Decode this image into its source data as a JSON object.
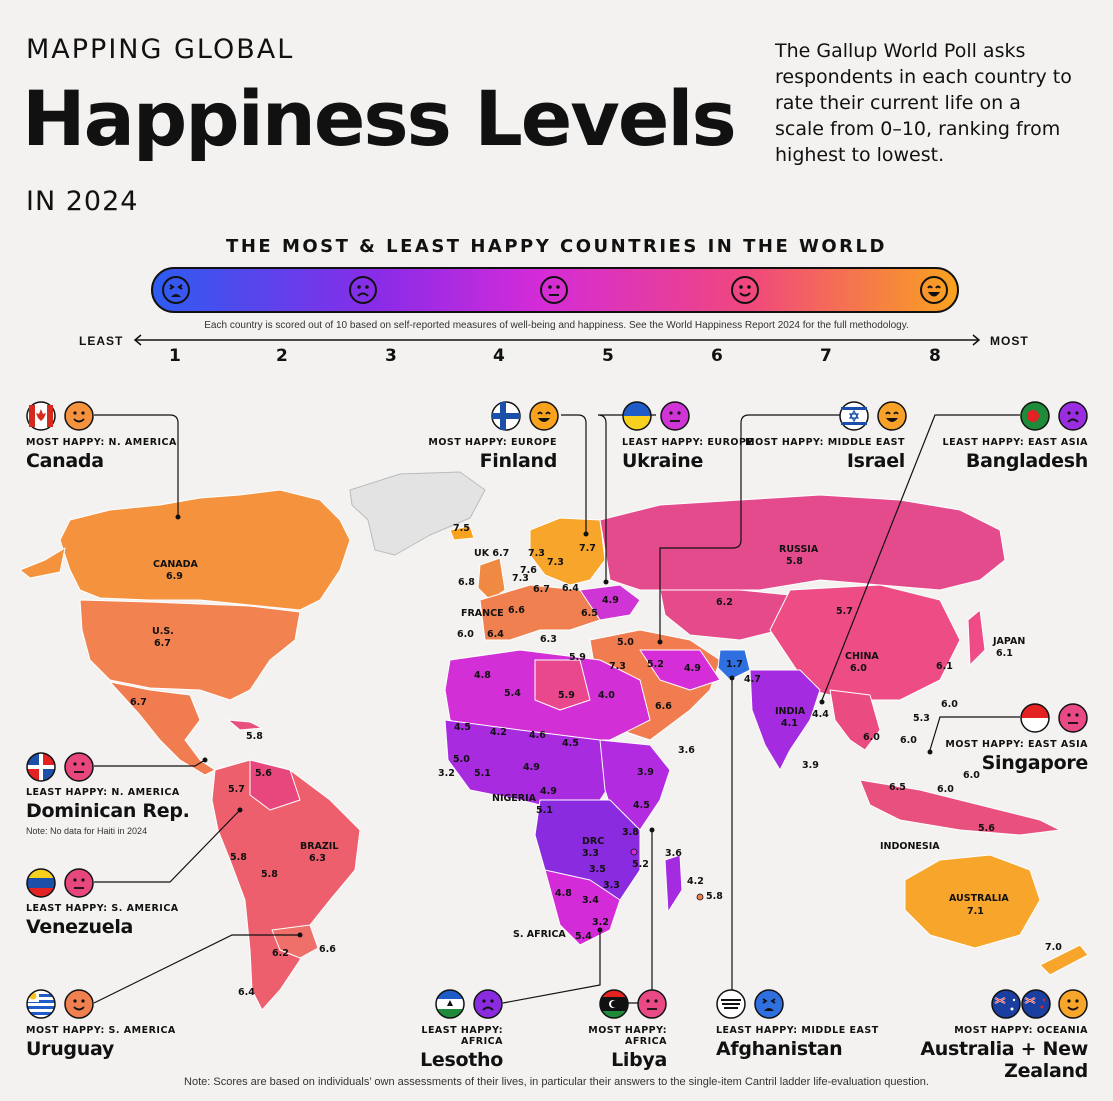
{
  "header": {
    "pretitle": "MAPPING GLOBAL",
    "title": "Happiness Levels",
    "posttitle": "IN 2024",
    "intro": "The Gallup World Poll asks respondents in each country to rate their current life on a scale from 0–10, ranking from highest to lowest."
  },
  "legend": {
    "subtitle": "THE MOST & LEAST HAPPY COUNTRIES IN THE WORLD",
    "note": "Each country is scored out of 10 based on self-reported measures of well-being and happiness. See the World Happiness Report 2024 for the full methodology.",
    "least": "LEAST",
    "most": "MOST",
    "ticks": [
      "1",
      "2",
      "3",
      "4",
      "5",
      "6",
      "7",
      "8"
    ],
    "colors": [
      "#2e5cf0",
      "#8a2be8",
      "#d42bd8",
      "#f0477e",
      "#f9a21e"
    ]
  },
  "callouts": {
    "canada": {
      "category": "MOST HAPPY: N. AMERICA",
      "country": "Canada"
    },
    "finland": {
      "category": "MOST HAPPY: EUROPE",
      "country": "Finland"
    },
    "ukraine": {
      "category": "LEAST HAPPY: EUROPE",
      "country": "Ukraine"
    },
    "israel": {
      "category": "MOST HAPPY: MIDDLE EAST",
      "country": "Israel"
    },
    "bangladesh": {
      "category": "LEAST HAPPY: EAST ASIA",
      "country": "Bangladesh"
    },
    "singapore": {
      "category": "MOST HAPPY: EAST ASIA",
      "country": "Singapore"
    },
    "dominican": {
      "category": "LEAST HAPPY: N. AMERICA",
      "country": "Dominican Rep.",
      "note": "Note: No data for Haiti in 2024"
    },
    "venezuela": {
      "category": "LEAST HAPPY: S. AMERICA",
      "country": "Venezuela"
    },
    "uruguay": {
      "category": "MOST HAPPY: S. AMERICA",
      "country": "Uruguay"
    },
    "lesotho": {
      "category": "LEAST HAPPY: AFRICA",
      "country": "Lesotho"
    },
    "libya": {
      "category": "MOST HAPPY: AFRICA",
      "country": "Libya"
    },
    "afghanistan": {
      "category": "LEAST HAPPY: MIDDLE EAST",
      "country": "Afghanistan"
    },
    "oceania": {
      "category": "MOST HAPPY: OCEANIA",
      "country": "Australia + New Zealand"
    }
  },
  "map_labels": [
    {
      "text": "CANADA"
    },
    {
      "text": "6.9"
    },
    {
      "text": "U.S."
    },
    {
      "text": "6.7"
    },
    {
      "text": "6.7"
    },
    {
      "text": "5.8"
    },
    {
      "text": "5.6"
    },
    {
      "text": "5.7"
    },
    {
      "text": "BRAZIL"
    },
    {
      "text": "6.3"
    },
    {
      "text": "5.8"
    },
    {
      "text": "5.8"
    },
    {
      "text": "6.2"
    },
    {
      "text": "6.6"
    },
    {
      "text": "6.4"
    },
    {
      "text": "7.5"
    },
    {
      "text": "UK 6.7"
    },
    {
      "text": "6.8"
    },
    {
      "text": "FRANCE"
    },
    {
      "text": "6.0"
    },
    {
      "text": "6.4"
    },
    {
      "text": "6.6"
    },
    {
      "text": "7.3"
    },
    {
      "text": "7.6"
    },
    {
      "text": "7.3"
    },
    {
      "text": "7.3"
    },
    {
      "text": "7.7"
    },
    {
      "text": "6.7"
    },
    {
      "text": "6.4"
    },
    {
      "text": "6.5"
    },
    {
      "text": "4.9"
    },
    {
      "text": "6.3"
    },
    {
      "text": "5.9"
    },
    {
      "text": "5.0"
    },
    {
      "text": "7.3"
    },
    {
      "text": "5.2"
    },
    {
      "text": "4.9"
    },
    {
      "text": "1.7"
    },
    {
      "text": "4.7"
    },
    {
      "text": "RUSSIA"
    },
    {
      "text": "5.8"
    },
    {
      "text": "6.2"
    },
    {
      "text": "5.7"
    },
    {
      "text": "CHINA"
    },
    {
      "text": "6.0"
    },
    {
      "text": "JAPAN"
    },
    {
      "text": "6.1"
    },
    {
      "text": "6.1"
    },
    {
      "text": "6.0"
    },
    {
      "text": "5.3"
    },
    {
      "text": "INDIA"
    },
    {
      "text": "4.1"
    },
    {
      "text": "4.4"
    },
    {
      "text": "6.0"
    },
    {
      "text": "6.0"
    },
    {
      "text": "3.9"
    },
    {
      "text": "6.5"
    },
    {
      "text": "6.0"
    },
    {
      "text": "6.0"
    },
    {
      "text": "5.6"
    },
    {
      "text": "INDONESIA"
    },
    {
      "text": "AUSTRALIA"
    },
    {
      "text": "7.1"
    },
    {
      "text": "7.0"
    },
    {
      "text": "4.8"
    },
    {
      "text": "5.4"
    },
    {
      "text": "5.9"
    },
    {
      "text": "4.0"
    },
    {
      "text": "6.6"
    },
    {
      "text": "4.5"
    },
    {
      "text": "4.2"
    },
    {
      "text": "4.6"
    },
    {
      "text": "4.5"
    },
    {
      "text": "3.6"
    },
    {
      "text": "5.0"
    },
    {
      "text": "3.2"
    },
    {
      "text": "5.1"
    },
    {
      "text": "4.9"
    },
    {
      "text": "NIGERIA"
    },
    {
      "text": "4.9"
    },
    {
      "text": "3.9"
    },
    {
      "text": "5.1"
    },
    {
      "text": "DRC"
    },
    {
      "text": "3.3"
    },
    {
      "text": "4.5"
    },
    {
      "text": "3.8"
    },
    {
      "text": "3.6"
    },
    {
      "text": "5.2"
    },
    {
      "text": "3.5"
    },
    {
      "text": "4.2"
    },
    {
      "text": "3.3"
    },
    {
      "text": "5.8"
    },
    {
      "text": "4.8"
    },
    {
      "text": "3.4"
    },
    {
      "text": "3.2"
    },
    {
      "text": "S. AFRICA"
    },
    {
      "text": "5.4"
    }
  ],
  "footer": "Note: Scores are based on individuals’ own assessments of their lives, in particular their answers to the single-item Cantril ladder life-evaluation question."
}
